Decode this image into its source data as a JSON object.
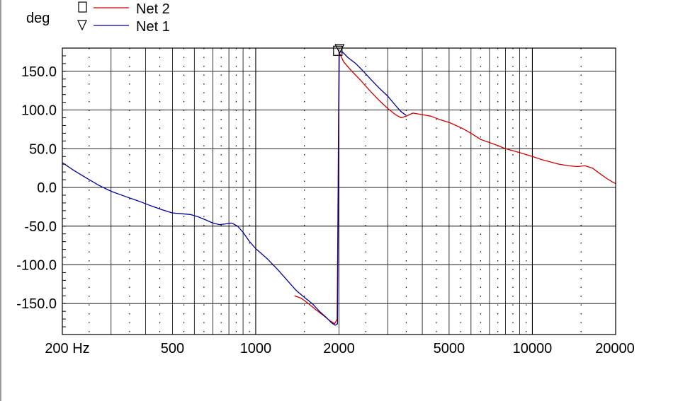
{
  "chart_data": {
    "type": "line",
    "ylabel": "deg",
    "x_scale": "log",
    "xlim": [
      200,
      20000
    ],
    "ylim": [
      -190,
      180
    ],
    "grid": true,
    "legend_position": "top-left",
    "x_tick_labels": [
      {
        "value": 200,
        "label": "200 Hz"
      },
      {
        "value": 500,
        "label": "500"
      },
      {
        "value": 1000,
        "label": "1000"
      },
      {
        "value": 2000,
        "label": "2000"
      },
      {
        "value": 5000,
        "label": "5000"
      },
      {
        "value": 10000,
        "label": "10000"
      },
      {
        "value": 20000,
        "label": "20000"
      }
    ],
    "y_tick_labels": [
      {
        "value": 150,
        "label": "150.0"
      },
      {
        "value": 100,
        "label": "100.0"
      },
      {
        "value": 50,
        "label": "50.0"
      },
      {
        "value": 0,
        "label": "0.0"
      },
      {
        "value": -50,
        "label": "-50.0"
      },
      {
        "value": -100,
        "label": "-100.0"
      },
      {
        "value": -150,
        "label": "-150.0"
      }
    ],
    "series": [
      {
        "name": "Net 2",
        "color": "#cc0000",
        "marker": "square",
        "marker_point": [
          1980,
          177
        ],
        "points": [
          [
            1380,
            -140
          ],
          [
            1460,
            -143
          ],
          [
            1550,
            -150
          ],
          [
            1650,
            -158
          ],
          [
            1750,
            -165
          ],
          [
            1850,
            -172
          ],
          [
            1930,
            -176
          ],
          [
            1970,
            -170
          ],
          [
            1985,
            0
          ],
          [
            2000,
            175
          ],
          [
            2080,
            162
          ],
          [
            2200,
            152
          ],
          [
            2400,
            138
          ],
          [
            2600,
            124
          ],
          [
            2800,
            112
          ],
          [
            3000,
            102
          ],
          [
            3200,
            94
          ],
          [
            3350,
            90
          ],
          [
            3500,
            92
          ],
          [
            3700,
            96
          ],
          [
            4000,
            94
          ],
          [
            4300,
            92
          ],
          [
            4600,
            88
          ],
          [
            5000,
            84
          ],
          [
            5300,
            80
          ],
          [
            5600,
            76
          ],
          [
            6000,
            70
          ],
          [
            6500,
            62
          ],
          [
            7000,
            58
          ],
          [
            7500,
            54
          ],
          [
            8000,
            50
          ],
          [
            8600,
            47
          ],
          [
            9200,
            44
          ],
          [
            10000,
            40
          ],
          [
            10800,
            36
          ],
          [
            11600,
            33
          ],
          [
            12500,
            30
          ],
          [
            13500,
            28
          ],
          [
            14500,
            27
          ],
          [
            15500,
            28
          ],
          [
            16500,
            25
          ],
          [
            17500,
            18
          ],
          [
            18500,
            12
          ],
          [
            19500,
            7
          ],
          [
            20000,
            5
          ]
        ]
      },
      {
        "name": "Net 1",
        "color": "#000099",
        "marker": "triangle-down",
        "marker_point": [
          2010,
          180
        ],
        "points": [
          [
            200,
            32
          ],
          [
            220,
            22
          ],
          [
            245,
            12
          ],
          [
            270,
            3
          ],
          [
            300,
            -5
          ],
          [
            340,
            -12
          ],
          [
            380,
            -18
          ],
          [
            420,
            -24
          ],
          [
            460,
            -29
          ],
          [
            500,
            -33
          ],
          [
            540,
            -34
          ],
          [
            580,
            -35
          ],
          [
            620,
            -38
          ],
          [
            660,
            -42
          ],
          [
            700,
            -46
          ],
          [
            740,
            -48
          ],
          [
            780,
            -47
          ],
          [
            820,
            -46
          ],
          [
            860,
            -50
          ],
          [
            900,
            -58
          ],
          [
            950,
            -70
          ],
          [
            1000,
            -79
          ],
          [
            1100,
            -92
          ],
          [
            1200,
            -106
          ],
          [
            1300,
            -120
          ],
          [
            1400,
            -133
          ],
          [
            1500,
            -142
          ],
          [
            1600,
            -150
          ],
          [
            1700,
            -160
          ],
          [
            1800,
            -168
          ],
          [
            1880,
            -175
          ],
          [
            1940,
            -178
          ],
          [
            1975,
            -176
          ],
          [
            1990,
            0
          ],
          [
            2005,
            175
          ],
          [
            2060,
            175
          ],
          [
            2150,
            168
          ],
          [
            2300,
            160
          ],
          [
            2450,
            150
          ],
          [
            2600,
            140
          ],
          [
            2800,
            128
          ],
          [
            3000,
            118
          ],
          [
            3200,
            106
          ],
          [
            3350,
            98
          ],
          [
            3500,
            93
          ]
        ]
      }
    ]
  }
}
